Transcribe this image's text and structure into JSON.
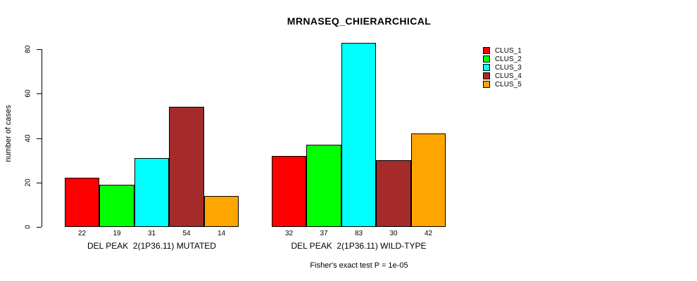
{
  "title": "MRNASEQ_CHIERARCHICAL",
  "footnote": "Fisher's exact test P = 1e-05",
  "y_axis": {
    "label": "number of cases",
    "ticks": [
      0,
      20,
      40,
      60,
      80
    ]
  },
  "legend": {
    "items": [
      {
        "label": "CLUS_1",
        "color": "#FF0000"
      },
      {
        "label": "CLUS_2",
        "color": "#00FF00"
      },
      {
        "label": "CLUS_3",
        "color": "#00FFFF"
      },
      {
        "label": "CLUS_4",
        "color": "#A52A2A"
      },
      {
        "label": "CLUS_5",
        "color": "#FFA500"
      }
    ]
  },
  "chart_data": {
    "type": "bar",
    "title": "MRNASEQ_CHIERARCHICAL",
    "xlabel": "",
    "ylabel": "number of cases",
    "ylim": [
      0,
      83
    ],
    "axis_ticks_y": [
      0,
      20,
      40,
      60,
      80
    ],
    "grid": false,
    "legend_position": "top-right",
    "value_labels_shown": true,
    "categories": [
      "DEL PEAK  2(1P36.11) MUTATED",
      "DEL PEAK  2(1P36.11) WILD-TYPE"
    ],
    "series": [
      {
        "name": "CLUS_1",
        "color": "#FF0000",
        "values": [
          22,
          32
        ]
      },
      {
        "name": "CLUS_2",
        "color": "#00FF00",
        "values": [
          19,
          37
        ]
      },
      {
        "name": "CLUS_3",
        "color": "#00FFFF",
        "values": [
          31,
          83
        ]
      },
      {
        "name": "CLUS_4",
        "color": "#A52A2A",
        "values": [
          54,
          30
        ]
      },
      {
        "name": "CLUS_5",
        "color": "#FFA500",
        "values": [
          14,
          42
        ]
      }
    ],
    "annotation": "Fisher's exact test P = 1e-05"
  }
}
